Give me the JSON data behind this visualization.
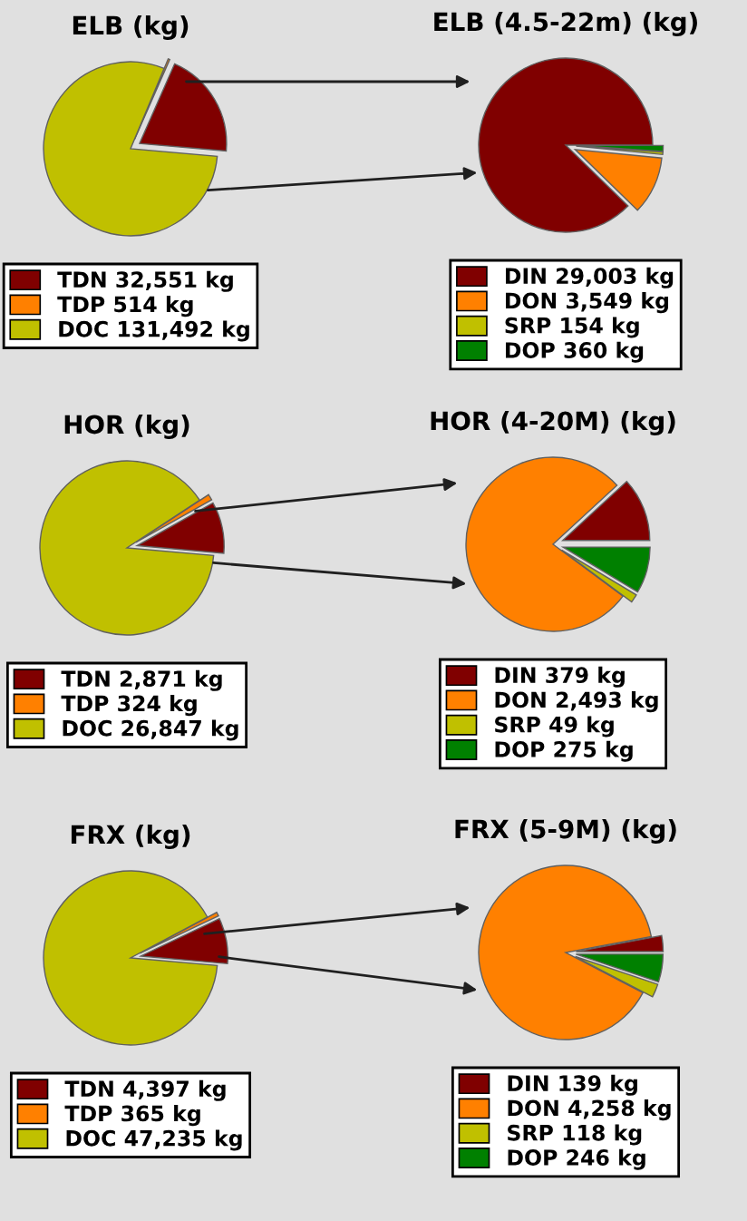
{
  "chart_data": [
    {
      "type": "pie",
      "title": "ELB (kg)",
      "categories": [
        "TDN 32,551 kg",
        "TDP 514 kg",
        "DOC 131,492 kg"
      ],
      "values": [
        32551,
        514,
        131492
      ],
      "colors": [
        "#800000",
        "#ff8000",
        "#c0c000"
      ],
      "legend": "bottom"
    },
    {
      "type": "pie",
      "title": "ELB (4.5-22m) (kg)",
      "categories": [
        "DIN 29,003 kg",
        "DON 3,549 kg",
        "SRP 154 kg",
        "DOP 360 kg"
      ],
      "values": [
        29003,
        3549,
        154,
        360
      ],
      "colors": [
        "#800000",
        "#ff8000",
        "#c0c000",
        "#008000"
      ],
      "legend": "bottom"
    },
    {
      "type": "pie",
      "title": "HOR (kg)",
      "categories": [
        "TDN 2,871 kg",
        "TDP 324 kg",
        "DOC 26,847 kg"
      ],
      "values": [
        2871,
        324,
        26847
      ],
      "colors": [
        "#800000",
        "#ff8000",
        "#c0c000"
      ],
      "legend": "bottom"
    },
    {
      "type": "pie",
      "title": "HOR (4-20M) (kg)",
      "categories": [
        "DIN 379 kg",
        "DON 2,493 kg",
        "SRP 49 kg",
        "DOP 275 kg"
      ],
      "values": [
        379,
        2493,
        49,
        275
      ],
      "colors": [
        "#800000",
        "#ff8000",
        "#c0c000",
        "#008000"
      ],
      "legend": "bottom"
    },
    {
      "type": "pie",
      "title": "FRX (kg)",
      "categories": [
        "TDN 4,397 kg",
        "TDP 365 kg",
        "DOC 47,235 kg"
      ],
      "values": [
        4397,
        365,
        47235
      ],
      "colors": [
        "#800000",
        "#ff8000",
        "#c0c000"
      ],
      "legend": "bottom"
    },
    {
      "type": "pie",
      "title": "FRX (5-9M) (kg)",
      "categories": [
        "DIN 139 kg",
        "DON 4,258 kg",
        "SRP 118 kg",
        "DOP 246 kg"
      ],
      "values": [
        139,
        4258,
        118,
        246
      ],
      "colors": [
        "#800000",
        "#ff8000",
        "#c0c000",
        "#008000"
      ],
      "legend": "bottom"
    }
  ]
}
